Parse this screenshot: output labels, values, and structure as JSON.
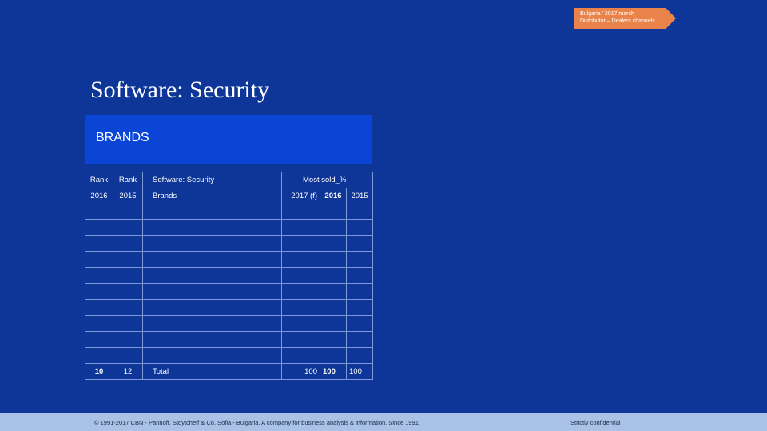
{
  "tag": {
    "line1": "Bulgaria ' 2017 march",
    "line2": "Distributor – Dealers channels",
    "color": "#e9834a"
  },
  "title": "Software: Security",
  "section_label": "BRANDS",
  "table": {
    "header_row1": {
      "rank_2016": "Rank",
      "rank_2015": "Rank",
      "category": "Software: Security",
      "most_sold": "Most sold_%"
    },
    "header_row2": {
      "rank_2016": "2016",
      "rank_2015": "2015",
      "category": "Brands",
      "y2017": "2017 (f)",
      "y2016": "2016",
      "y2015": "2015"
    },
    "empty_rows": 10,
    "total_row": {
      "rank_2016": "10",
      "rank_2015": "12",
      "label": "Total",
      "y2017": "100",
      "y2016": "100",
      "y2015": "100"
    }
  },
  "footer": {
    "left": "© 1991-2017 CBN - Pannoff, Stoytcheff & Co. Sofia - Bulgaria. A company for business analysis & information. Since 1991.",
    "right": "Strictly confidential"
  },
  "colors": {
    "background": "#0d3698",
    "brands_box": "#0a45d6",
    "footer": "#a9c2e6"
  }
}
